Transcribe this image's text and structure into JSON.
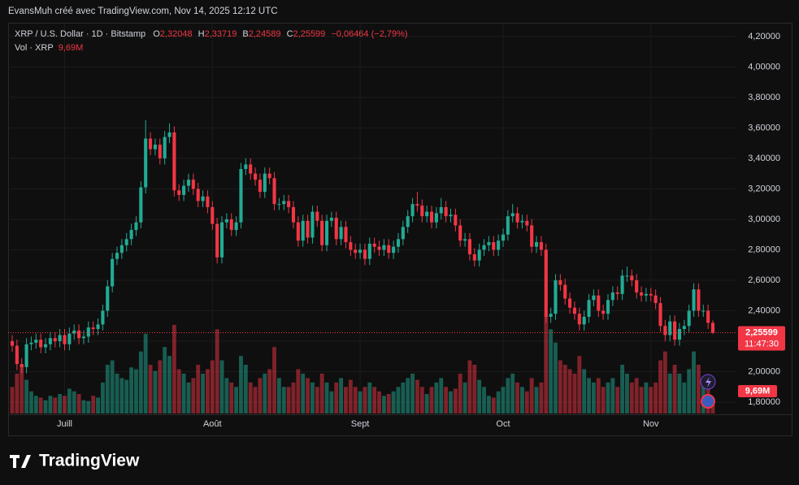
{
  "header": {
    "caption": "EvansMuh créé avec TradingView.com, Nov 14, 2025 12:12 UTC",
    "symbol": "XRP / U.S. Dollar · 1D · Bitstamp",
    "ohlc": [
      {
        "key": "O",
        "value": "2,32048"
      },
      {
        "key": "H",
        "value": "2,33719"
      },
      {
        "key": "B",
        "value": "2,24589"
      },
      {
        "key": "C",
        "value": "2,25599"
      }
    ],
    "change": "−0,06464 (−2,79%)",
    "volume_title": "Vol · XRP",
    "volume_value": "9,69M"
  },
  "logo_text": "TradingView",
  "chart_data": {
    "type": "candlestick",
    "up_color": "#22ab94",
    "down_color": "#f23645",
    "grid": true,
    "x": [
      "2025-06-20",
      "2025-06-21",
      "2025-06-22",
      "2025-06-23",
      "2025-06-24",
      "2025-06-25",
      "2025-06-26",
      "2025-06-27",
      "2025-06-28",
      "2025-06-29",
      "2025-06-30",
      "2025-07-01",
      "2025-07-02",
      "2025-07-03",
      "2025-07-04",
      "2025-07-05",
      "2025-07-06",
      "2025-07-07",
      "2025-07-08",
      "2025-07-09",
      "2025-07-10",
      "2025-07-11",
      "2025-07-12",
      "2025-07-13",
      "2025-07-14",
      "2025-07-15",
      "2025-07-16",
      "2025-07-17",
      "2025-07-18",
      "2025-07-19",
      "2025-07-20",
      "2025-07-21",
      "2025-07-22",
      "2025-07-23",
      "2025-07-24",
      "2025-07-25",
      "2025-07-26",
      "2025-07-27",
      "2025-07-28",
      "2025-07-29",
      "2025-07-30",
      "2025-07-31",
      "2025-08-01",
      "2025-08-02",
      "2025-08-03",
      "2025-08-04",
      "2025-08-05",
      "2025-08-06",
      "2025-08-07",
      "2025-08-08",
      "2025-08-09",
      "2025-08-10",
      "2025-08-11",
      "2025-08-12",
      "2025-08-13",
      "2025-08-14",
      "2025-08-15",
      "2025-08-16",
      "2025-08-17",
      "2025-08-18",
      "2025-08-19",
      "2025-08-20",
      "2025-08-21",
      "2025-08-22",
      "2025-08-23",
      "2025-08-24",
      "2025-08-25",
      "2025-08-26",
      "2025-08-27",
      "2025-08-28",
      "2025-08-29",
      "2025-08-30",
      "2025-08-31",
      "2025-09-01",
      "2025-09-02",
      "2025-09-03",
      "2025-09-04",
      "2025-09-05",
      "2025-09-06",
      "2025-09-07",
      "2025-09-08",
      "2025-09-09",
      "2025-09-10",
      "2025-09-11",
      "2025-09-12",
      "2025-09-13",
      "2025-09-14",
      "2025-09-15",
      "2025-09-16",
      "2025-09-17",
      "2025-09-18",
      "2025-09-19",
      "2025-09-20",
      "2025-09-21",
      "2025-09-22",
      "2025-09-23",
      "2025-09-24",
      "2025-09-25",
      "2025-09-26",
      "2025-09-27",
      "2025-09-28",
      "2025-09-29",
      "2025-09-30",
      "2025-10-01",
      "2025-10-02",
      "2025-10-03",
      "2025-10-04",
      "2025-10-05",
      "2025-10-06",
      "2025-10-07",
      "2025-10-08",
      "2025-10-09",
      "2025-10-10",
      "2025-10-11",
      "2025-10-12",
      "2025-10-13",
      "2025-10-14",
      "2025-10-15",
      "2025-10-16",
      "2025-10-17",
      "2025-10-18",
      "2025-10-19",
      "2025-10-20",
      "2025-10-21",
      "2025-10-22",
      "2025-10-23",
      "2025-10-24",
      "2025-10-25",
      "2025-10-26",
      "2025-10-27",
      "2025-10-28",
      "2025-10-29",
      "2025-10-30",
      "2025-10-31",
      "2025-11-01",
      "2025-11-02",
      "2025-11-03",
      "2025-11-04",
      "2025-11-05",
      "2025-11-06",
      "2025-11-07",
      "2025-11-08",
      "2025-11-09",
      "2025-11-10",
      "2025-11-11",
      "2025-11-12",
      "2025-11-13",
      "2025-11-14"
    ],
    "open": [
      2.2,
      2.17,
      2.05,
      2.03,
      2.18,
      2.19,
      2.21,
      2.16,
      2.18,
      2.22,
      2.2,
      2.24,
      2.18,
      2.25,
      2.27,
      2.22,
      2.23,
      2.29,
      2.28,
      2.31,
      2.4,
      2.56,
      2.74,
      2.78,
      2.83,
      2.87,
      2.93,
      2.98,
      3.21,
      3.53,
      3.46,
      3.49,
      3.4,
      3.54,
      3.57,
      3.19,
      3.16,
      3.22,
      3.26,
      3.2,
      3.12,
      3.15,
      3.08,
      2.97,
      2.75,
      2.98,
      3.0,
      2.93,
      2.98,
      3.33,
      3.36,
      3.3,
      3.26,
      3.18,
      3.3,
      3.27,
      3.1,
      3.1,
      3.12,
      3.08,
      2.98,
      2.86,
      2.99,
      2.88,
      3.05,
      2.99,
      2.83,
      2.99,
      3.01,
      2.87,
      2.95,
      2.85,
      2.8,
      2.78,
      2.8,
      2.74,
      2.84,
      2.82,
      2.8,
      2.83,
      2.78,
      2.82,
      2.87,
      2.95,
      3.02,
      3.1,
      3.09,
      3.02,
      3.05,
      2.98,
      3.04,
      3.08,
      3.02,
      3.03,
      2.96,
      2.86,
      2.87,
      2.77,
      2.73,
      2.8,
      2.83,
      2.85,
      2.8,
      2.86,
      2.9,
      3.02,
      3.04,
      2.98,
      2.99,
      2.96,
      2.82,
      2.85,
      2.8,
      2.36,
      2.38,
      2.6,
      2.57,
      2.48,
      2.42,
      2.38,
      2.31,
      2.36,
      2.47,
      2.5,
      2.4,
      2.38,
      2.47,
      2.52,
      2.51,
      2.63,
      2.63,
      2.6,
      2.52,
      2.5,
      2.51,
      2.5,
      2.45,
      2.3,
      2.24,
      2.33,
      2.21,
      2.28,
      2.3,
      2.4,
      2.54,
      2.4,
      2.4,
      2.32048
    ],
    "high": [
      2.24,
      2.21,
      2.09,
      2.22,
      2.23,
      2.25,
      2.25,
      2.22,
      2.26,
      2.26,
      2.28,
      2.28,
      2.29,
      2.31,
      2.31,
      2.27,
      2.33,
      2.33,
      2.35,
      2.44,
      2.6,
      2.78,
      2.82,
      2.87,
      2.91,
      2.97,
      3.02,
      3.25,
      3.65,
      3.57,
      3.53,
      3.53,
      3.58,
      3.63,
      3.61,
      3.23,
      3.26,
      3.3,
      3.3,
      3.24,
      3.19,
      3.19,
      3.12,
      3.01,
      3.02,
      3.04,
      3.04,
      3.02,
      3.37,
      3.4,
      3.4,
      3.34,
      3.3,
      3.34,
      3.34,
      3.31,
      3.14,
      3.16,
      3.16,
      3.12,
      3.02,
      3.03,
      3.03,
      3.09,
      3.09,
      3.03,
      3.03,
      3.05,
      3.05,
      2.99,
      2.99,
      2.89,
      2.84,
      2.84,
      2.84,
      2.88,
      2.88,
      2.86,
      2.87,
      2.87,
      2.86,
      2.91,
      2.99,
      3.06,
      3.14,
      3.18,
      3.13,
      3.09,
      3.09,
      3.08,
      3.14,
      3.12,
      3.07,
      3.07,
      3.0,
      2.91,
      2.91,
      2.81,
      2.84,
      2.87,
      2.89,
      2.89,
      2.9,
      2.94,
      3.06,
      3.1,
      3.08,
      3.03,
      3.03,
      3.0,
      2.89,
      2.89,
      2.84,
      2.42,
      2.64,
      2.64,
      2.61,
      2.52,
      2.46,
      2.42,
      2.4,
      2.51,
      2.54,
      2.54,
      2.44,
      2.51,
      2.56,
      2.56,
      2.67,
      2.69,
      2.67,
      2.64,
      2.56,
      2.55,
      2.55,
      2.54,
      2.49,
      2.34,
      2.37,
      2.37,
      2.32,
      2.34,
      2.44,
      2.58,
      2.58,
      2.44,
      2.44,
      2.33719
    ],
    "low": [
      2.13,
      2.01,
      1.99,
      1.99,
      2.14,
      2.15,
      2.12,
      2.12,
      2.14,
      2.16,
      2.16,
      2.14,
      2.14,
      2.21,
      2.18,
      2.18,
      2.19,
      2.24,
      2.24,
      2.27,
      2.36,
      2.52,
      2.7,
      2.74,
      2.79,
      2.83,
      2.89,
      2.94,
      3.17,
      3.42,
      3.42,
      3.36,
      3.36,
      3.5,
      3.15,
      3.12,
      3.12,
      3.18,
      3.16,
      3.08,
      3.08,
      3.04,
      2.93,
      2.71,
      2.71,
      2.94,
      2.89,
      2.89,
      2.94,
      3.29,
      3.26,
      3.22,
      3.14,
      3.14,
      3.23,
      3.06,
      3.06,
      3.06,
      3.04,
      2.94,
      2.82,
      2.82,
      2.84,
      2.84,
      2.95,
      2.79,
      2.79,
      2.95,
      2.83,
      2.83,
      2.81,
      2.76,
      2.74,
      2.74,
      2.7,
      2.7,
      2.78,
      2.76,
      2.76,
      2.74,
      2.74,
      2.78,
      2.83,
      2.91,
      2.98,
      3.05,
      2.98,
      2.98,
      2.94,
      2.94,
      3.0,
      2.98,
      2.98,
      2.92,
      2.82,
      2.82,
      2.73,
      2.69,
      2.69,
      2.76,
      2.79,
      2.76,
      2.76,
      2.82,
      2.86,
      2.98,
      2.94,
      2.94,
      2.92,
      2.78,
      2.78,
      2.76,
      2.32,
      2.32,
      2.34,
      2.53,
      2.44,
      2.38,
      2.34,
      2.27,
      2.27,
      2.32,
      2.43,
      2.36,
      2.34,
      2.34,
      2.43,
      2.47,
      2.47,
      2.59,
      2.56,
      2.48,
      2.46,
      2.46,
      2.46,
      2.41,
      2.26,
      2.2,
      2.2,
      2.17,
      2.17,
      2.24,
      2.26,
      2.36,
      2.36,
      2.36,
      2.28,
      2.24589
    ],
    "close": [
      2.17,
      2.05,
      2.03,
      2.18,
      2.19,
      2.21,
      2.16,
      2.18,
      2.22,
      2.2,
      2.24,
      2.18,
      2.25,
      2.27,
      2.22,
      2.23,
      2.29,
      2.28,
      2.31,
      2.4,
      2.56,
      2.74,
      2.78,
      2.83,
      2.87,
      2.93,
      2.98,
      3.21,
      3.53,
      3.46,
      3.49,
      3.4,
      3.54,
      3.57,
      3.19,
      3.16,
      3.22,
      3.26,
      3.2,
      3.12,
      3.15,
      3.08,
      2.97,
      2.75,
      2.98,
      3.0,
      2.93,
      2.98,
      3.33,
      3.36,
      3.3,
      3.26,
      3.18,
      3.3,
      3.27,
      3.1,
      3.1,
      3.12,
      3.08,
      2.98,
      2.86,
      2.99,
      2.88,
      3.05,
      2.99,
      2.83,
      2.99,
      3.01,
      2.87,
      2.95,
      2.85,
      2.8,
      2.78,
      2.8,
      2.74,
      2.84,
      2.82,
      2.8,
      2.83,
      2.78,
      2.82,
      2.87,
      2.95,
      3.02,
      3.1,
      3.09,
      3.02,
      3.05,
      2.98,
      3.04,
      3.08,
      3.02,
      3.03,
      2.96,
      2.86,
      2.87,
      2.77,
      2.73,
      2.8,
      2.83,
      2.85,
      2.8,
      2.86,
      2.9,
      3.02,
      3.04,
      2.98,
      2.99,
      2.96,
      2.82,
      2.85,
      2.8,
      2.36,
      2.38,
      2.6,
      2.57,
      2.48,
      2.42,
      2.38,
      2.31,
      2.36,
      2.47,
      2.5,
      2.4,
      2.38,
      2.47,
      2.52,
      2.51,
      2.63,
      2.63,
      2.6,
      2.52,
      2.5,
      2.51,
      2.5,
      2.45,
      2.3,
      2.24,
      2.33,
      2.21,
      2.28,
      2.3,
      2.4,
      2.54,
      2.4,
      2.4,
      2.32063,
      2.25599
    ],
    "volume": [
      30,
      45,
      55,
      38,
      25,
      20,
      18,
      15,
      20,
      18,
      22,
      20,
      28,
      25,
      22,
      15,
      14,
      20,
      18,
      35,
      55,
      60,
      45,
      40,
      38,
      52,
      50,
      70,
      90,
      55,
      48,
      60,
      75,
      65,
      100,
      50,
      45,
      35,
      40,
      55,
      45,
      50,
      60,
      95,
      60,
      40,
      35,
      30,
      65,
      55,
      35,
      30,
      40,
      45,
      50,
      75,
      40,
      30,
      30,
      35,
      50,
      45,
      40,
      35,
      30,
      45,
      35,
      25,
      35,
      40,
      30,
      38,
      30,
      25,
      30,
      35,
      30,
      25,
      20,
      22,
      25,
      30,
      35,
      40,
      45,
      38,
      30,
      22,
      30,
      35,
      40,
      30,
      25,
      28,
      45,
      35,
      60,
      55,
      38,
      30,
      20,
      18,
      25,
      30,
      40,
      45,
      35,
      30,
      25,
      40,
      30,
      35,
      110,
      95,
      80,
      60,
      55,
      50,
      45,
      65,
      50,
      40,
      35,
      40,
      30,
      35,
      40,
      30,
      55,
      45,
      35,
      40,
      30,
      35,
      30,
      35,
      60,
      70,
      45,
      55,
      45,
      35,
      50,
      70,
      55,
      40,
      35,
      9.69
    ],
    "ylim": [
      1.72,
      4.29
    ],
    "yticks": [
      {
        "value": 1.8,
        "label": "1,80000"
      },
      {
        "value": 2.0,
        "label": "2,00000"
      },
      {
        "value": 2.2,
        "label": "2,20000"
      },
      {
        "value": 2.4,
        "label": "2,40000"
      },
      {
        "value": 2.6,
        "label": "2,60000"
      },
      {
        "value": 2.8,
        "label": "2,80000"
      },
      {
        "value": 3.0,
        "label": "3,00000"
      },
      {
        "value": 3.2,
        "label": "3,20000"
      },
      {
        "value": 3.4,
        "label": "3,40000"
      },
      {
        "value": 3.6,
        "label": "3,60000"
      },
      {
        "value": 3.8,
        "label": "3,80000"
      },
      {
        "value": 4.0,
        "label": "4,00000"
      },
      {
        "value": 4.2,
        "label": "4,20000"
      }
    ],
    "xticks": [
      {
        "value": "2025-07-01",
        "label": "Juill"
      },
      {
        "value": "2025-08-01",
        "label": "Août"
      },
      {
        "value": "2025-09-01",
        "label": "Sept"
      },
      {
        "value": "2025-10-01",
        "label": "Oct"
      },
      {
        "value": "2025-11-01",
        "label": "Nov"
      }
    ],
    "last_price_label": "2,25599",
    "countdown": "11:47:30",
    "last_volume_label": "9,69M"
  }
}
